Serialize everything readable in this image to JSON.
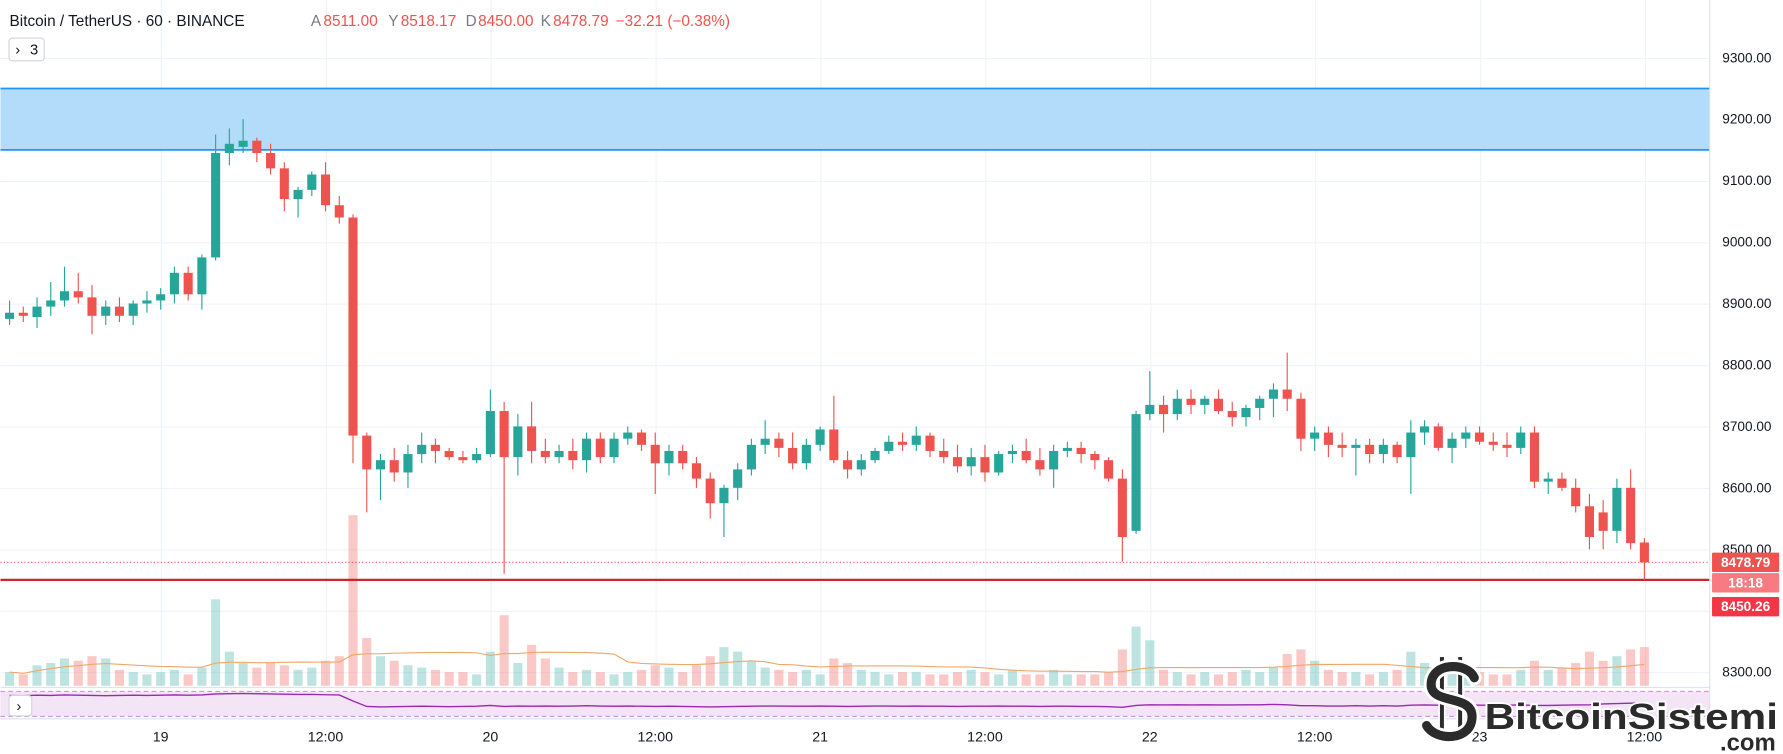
{
  "header": {
    "title": "Bitcoin / TetherUS · 60 · BINANCE",
    "o_label": "A",
    "o": "8511.00",
    "h_label": "Y",
    "h": "8518.17",
    "l_label": "D",
    "l": "8450.00",
    "c_label": "K",
    "c": "8478.79",
    "change": "−32.21 (−0.38%)"
  },
  "legend_toggle": {
    "chevron": "›",
    "count": "3",
    "chevron_icon": "chevron-right-icon"
  },
  "indicator_toggle": {
    "chevron": "›",
    "chevron_icon": "chevron-right-icon"
  },
  "watermark": {
    "text": "BitcoinSistemi",
    "suffix": ".com"
  },
  "colors": {
    "up": "#26a69a",
    "down": "#ef5350",
    "volume_up": "rgba(38,166,154,0.30)",
    "volume_down": "rgba(239,83,80,0.32)",
    "zone_fill": "#b3dcfb",
    "zone_line": "#2196f3",
    "support_line": "#c62828",
    "indicator": "#9c27b0",
    "indicator_pane": "#f3e5f5",
    "volume_ma": "#f0a868"
  },
  "chart_data": {
    "type": "candlestick",
    "title": "Bitcoin / TetherUS · 60 · BINANCE",
    "ylim": [
      8276,
      9394
    ],
    "grid": true,
    "price_axis": {
      "ticks": [
        "9300.00",
        "9200.00",
        "9100.00",
        "9000.00",
        "8900.00",
        "8800.00",
        "8700.00",
        "8600.00",
        "8500.00",
        "8300.00"
      ]
    },
    "time_axis": {
      "labels": [
        "19",
        "12:00",
        "20",
        "12:00",
        "21",
        "12:00",
        "22",
        "12:00",
        "23",
        "12:00"
      ]
    },
    "resistance_zone": {
      "low": 9150,
      "high": 9250
    },
    "support_line": {
      "price": 8450.26,
      "label": "8450.26"
    },
    "current_price": {
      "price": 8478.79,
      "label": "8478.79",
      "countdown": "18:18"
    },
    "candles_format": [
      "open",
      "high",
      "low",
      "close",
      "volume"
    ],
    "candles": [
      [
        8875,
        8905,
        8865,
        8885,
        12
      ],
      [
        8885,
        8895,
        8870,
        8880,
        10
      ],
      [
        8878,
        8910,
        8860,
        8895,
        18
      ],
      [
        8895,
        8935,
        8880,
        8905,
        20
      ],
      [
        8905,
        8960,
        8895,
        8920,
        24
      ],
      [
        8920,
        8950,
        8900,
        8910,
        22
      ],
      [
        8910,
        8930,
        8850,
        8880,
        26
      ],
      [
        8880,
        8905,
        8865,
        8895,
        24
      ],
      [
        8895,
        8910,
        8870,
        8880,
        14
      ],
      [
        8880,
        8905,
        8865,
        8900,
        12
      ],
      [
        8900,
        8920,
        8885,
        8905,
        10
      ],
      [
        8905,
        8925,
        8890,
        8915,
        12
      ],
      [
        8915,
        8960,
        8900,
        8950,
        14
      ],
      [
        8950,
        8960,
        8905,
        8915,
        10
      ],
      [
        8915,
        8980,
        8890,
        8975,
        16
      ],
      [
        8975,
        9175,
        8970,
        9145,
        76
      ],
      [
        9145,
        9185,
        9125,
        9160,
        30
      ],
      [
        9155,
        9200,
        9145,
        9165,
        20
      ],
      [
        9165,
        9170,
        9130,
        9145,
        16
      ],
      [
        9145,
        9160,
        9110,
        9120,
        20
      ],
      [
        9120,
        9130,
        9050,
        9070,
        18
      ],
      [
        9070,
        9090,
        9040,
        9085,
        14
      ],
      [
        9085,
        9115,
        9075,
        9110,
        16
      ],
      [
        9110,
        9130,
        9050,
        9060,
        22
      ],
      [
        9060,
        9075,
        9030,
        9040,
        26
      ],
      [
        9040,
        9045,
        8640,
        8685,
        150
      ],
      [
        8685,
        8690,
        8560,
        8630,
        42
      ],
      [
        8630,
        8655,
        8580,
        8645,
        26
      ],
      [
        8645,
        8665,
        8610,
        8625,
        22
      ],
      [
        8625,
        8670,
        8600,
        8655,
        18
      ],
      [
        8655,
        8690,
        8640,
        8670,
        16
      ],
      [
        8670,
        8680,
        8640,
        8660,
        14
      ],
      [
        8660,
        8665,
        8645,
        8650,
        12
      ],
      [
        8650,
        8660,
        8640,
        8645,
        12
      ],
      [
        8645,
        8665,
        8640,
        8655,
        10
      ],
      [
        8655,
        8760,
        8650,
        8725,
        30
      ],
      [
        8725,
        8740,
        8460,
        8650,
        62
      ],
      [
        8650,
        8720,
        8620,
        8700,
        20
      ],
      [
        8700,
        8740,
        8640,
        8660,
        36
      ],
      [
        8660,
        8680,
        8640,
        8650,
        24
      ],
      [
        8650,
        8670,
        8640,
        8660,
        16
      ],
      [
        8660,
        8680,
        8630,
        8645,
        12
      ],
      [
        8645,
        8690,
        8625,
        8680,
        14
      ],
      [
        8680,
        8690,
        8640,
        8650,
        12
      ],
      [
        8650,
        8690,
        8640,
        8680,
        10
      ],
      [
        8680,
        8700,
        8670,
        8690,
        12
      ],
      [
        8690,
        8695,
        8660,
        8670,
        14
      ],
      [
        8670,
        8690,
        8590,
        8640,
        18
      ],
      [
        8640,
        8670,
        8620,
        8660,
        16
      ],
      [
        8660,
        8670,
        8630,
        8640,
        12
      ],
      [
        8640,
        8650,
        8600,
        8615,
        18
      ],
      [
        8615,
        8625,
        8550,
        8575,
        26
      ],
      [
        8575,
        8605,
        8520,
        8600,
        34
      ],
      [
        8600,
        8640,
        8580,
        8630,
        30
      ],
      [
        8630,
        8680,
        8620,
        8670,
        22
      ],
      [
        8670,
        8710,
        8655,
        8680,
        16
      ],
      [
        8680,
        8690,
        8650,
        8665,
        14
      ],
      [
        8665,
        8690,
        8630,
        8640,
        12
      ],
      [
        8640,
        8680,
        8630,
        8670,
        14
      ],
      [
        8670,
        8700,
        8660,
        8695,
        10
      ],
      [
        8695,
        8750,
        8640,
        8645,
        24
      ],
      [
        8645,
        8660,
        8615,
        8630,
        20
      ],
      [
        8630,
        8655,
        8620,
        8645,
        14
      ],
      [
        8645,
        8665,
        8640,
        8660,
        12
      ],
      [
        8660,
        8685,
        8655,
        8675,
        10
      ],
      [
        8675,
        8690,
        8660,
        8670,
        12
      ],
      [
        8670,
        8700,
        8660,
        8685,
        12
      ],
      [
        8685,
        8690,
        8650,
        8660,
        10
      ],
      [
        8660,
        8680,
        8640,
        8650,
        10
      ],
      [
        8650,
        8670,
        8625,
        8635,
        12
      ],
      [
        8635,
        8665,
        8620,
        8650,
        14
      ],
      [
        8650,
        8670,
        8610,
        8625,
        12
      ],
      [
        8625,
        8660,
        8620,
        8655,
        10
      ],
      [
        8655,
        8670,
        8640,
        8660,
        14
      ],
      [
        8660,
        8680,
        8640,
        8645,
        10
      ],
      [
        8645,
        8665,
        8620,
        8630,
        10
      ],
      [
        8630,
        8670,
        8600,
        8660,
        14
      ],
      [
        8660,
        8675,
        8650,
        8665,
        10
      ],
      [
        8665,
        8675,
        8640,
        8655,
        10
      ],
      [
        8655,
        8660,
        8630,
        8645,
        10
      ],
      [
        8645,
        8650,
        8610,
        8615,
        12
      ],
      [
        8615,
        8630,
        8480,
        8520,
        32
      ],
      [
        8530,
        8725,
        8525,
        8720,
        52
      ],
      [
        8720,
        8790,
        8710,
        8735,
        40
      ],
      [
        8735,
        8750,
        8690,
        8720,
        14
      ],
      [
        8720,
        8760,
        8710,
        8745,
        12
      ],
      [
        8745,
        8760,
        8720,
        8735,
        10
      ],
      [
        8735,
        8750,
        8720,
        8745,
        12
      ],
      [
        8745,
        8760,
        8720,
        8725,
        10
      ],
      [
        8725,
        8740,
        8700,
        8715,
        12
      ],
      [
        8715,
        8735,
        8700,
        8730,
        14
      ],
      [
        8730,
        8750,
        8710,
        8745,
        12
      ],
      [
        8745,
        8770,
        8715,
        8760,
        16
      ],
      [
        8760,
        8820,
        8725,
        8745,
        28
      ],
      [
        8745,
        8755,
        8660,
        8680,
        32
      ],
      [
        8680,
        8700,
        8660,
        8690,
        22
      ],
      [
        8690,
        8700,
        8650,
        8670,
        14
      ],
      [
        8670,
        8690,
        8650,
        8665,
        12
      ],
      [
        8665,
        8680,
        8620,
        8670,
        12
      ],
      [
        8670,
        8680,
        8640,
        8655,
        10
      ],
      [
        8655,
        8680,
        8640,
        8670,
        12
      ],
      [
        8670,
        8675,
        8640,
        8650,
        14
      ],
      [
        8650,
        8710,
        8590,
        8690,
        30
      ],
      [
        8690,
        8710,
        8670,
        8700,
        20
      ],
      [
        8700,
        8705,
        8660,
        8665,
        16
      ],
      [
        8665,
        8690,
        8640,
        8680,
        12
      ],
      [
        8680,
        8700,
        8665,
        8690,
        10
      ],
      [
        8690,
        8700,
        8670,
        8675,
        12
      ],
      [
        8675,
        8690,
        8660,
        8670,
        10
      ],
      [
        8670,
        8690,
        8650,
        8665,
        10
      ],
      [
        8665,
        8700,
        8655,
        8690,
        14
      ],
      [
        8690,
        8700,
        8600,
        8610,
        22
      ],
      [
        8610,
        8625,
        8590,
        8615,
        14
      ],
      [
        8615,
        8625,
        8595,
        8600,
        16
      ],
      [
        8600,
        8615,
        8560,
        8570,
        20
      ],
      [
        8570,
        8590,
        8500,
        8520,
        30
      ],
      [
        8560,
        8580,
        8500,
        8530,
        22
      ],
      [
        8530,
        8615,
        8510,
        8600,
        26
      ],
      [
        8600,
        8630,
        8500,
        8510,
        32
      ],
      [
        8511,
        8518.17,
        8450,
        8478.79,
        34
      ]
    ],
    "indicator": [
      84,
      83,
      85,
      84,
      86,
      85,
      84,
      83,
      84,
      85,
      84,
      85,
      86,
      85,
      86,
      90,
      91,
      92,
      91,
      90,
      89,
      88,
      88,
      87,
      86,
      62,
      40,
      38,
      39,
      40,
      41,
      40,
      39,
      40,
      41,
      44,
      40,
      42,
      41,
      42,
      41,
      42,
      43,
      42,
      41,
      42,
      41,
      40,
      41,
      40,
      39,
      38,
      39,
      40,
      41,
      42,
      42,
      41,
      41,
      42,
      41,
      40,
      41,
      42,
      42,
      41,
      42,
      41,
      41,
      40,
      41,
      41,
      42,
      41,
      41,
      40,
      41,
      41,
      40,
      40,
      39,
      37,
      44,
      47,
      46,
      47,
      46,
      47,
      46,
      46,
      47,
      47,
      48,
      47,
      43,
      43,
      42,
      42,
      43,
      42,
      43,
      42,
      45,
      46,
      45,
      45,
      46,
      45,
      45,
      45,
      46,
      44,
      44,
      45,
      46,
      47,
      50,
      52,
      53,
      54
    ]
  }
}
